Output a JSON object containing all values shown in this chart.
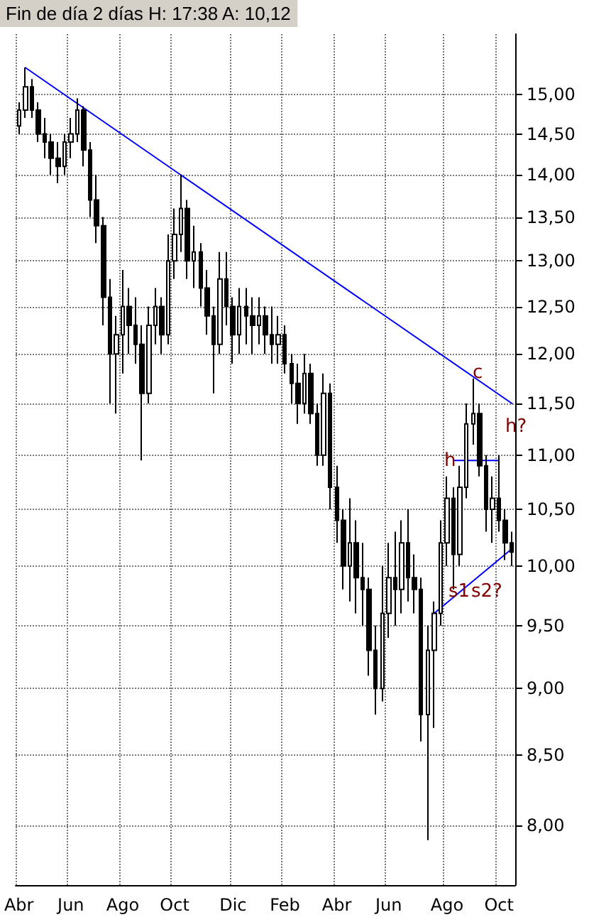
{
  "chart_data": {
    "type": "candlestick",
    "title": "Fin de día 2 días H: 17:38 A: 10,12",
    "categories": [
      "Abr",
      null,
      null,
      null,
      null,
      null,
      null,
      null,
      "Jun",
      null,
      null,
      null,
      null,
      null,
      null,
      null,
      "Ago",
      null,
      null,
      null,
      null,
      null,
      null,
      null,
      "Oct",
      null,
      null,
      null,
      null,
      null,
      null,
      null,
      null,
      "Dic",
      null,
      null,
      null,
      null,
      null,
      null,
      null,
      "Feb",
      null,
      null,
      null,
      null,
      null,
      null,
      null,
      "Abr",
      null,
      null,
      null,
      null,
      null,
      null,
      null,
      "Jun",
      null,
      null,
      null,
      null,
      null,
      null,
      null,
      null,
      "Ago",
      null,
      null,
      null,
      null,
      null,
      null,
      null,
      "Oct",
      null,
      null
    ],
    "color": "#000000",
    "ohlc": [
      [
        14.6,
        14.9,
        14.5,
        14.8
      ],
      [
        14.8,
        15.35,
        14.7,
        15.1
      ],
      [
        15.1,
        15.2,
        14.7,
        14.8
      ],
      [
        14.8,
        14.9,
        14.4,
        14.5
      ],
      [
        14.5,
        14.7,
        14.2,
        14.4
      ],
      [
        14.4,
        14.5,
        14.0,
        14.2
      ],
      [
        14.2,
        14.4,
        13.9,
        14.1
      ],
      [
        14.1,
        14.5,
        14.0,
        14.4
      ],
      [
        14.4,
        14.7,
        14.2,
        14.5
      ],
      [
        14.5,
        14.95,
        14.4,
        14.8
      ],
      [
        14.8,
        14.85,
        14.1,
        14.3
      ],
      [
        14.3,
        14.4,
        13.5,
        13.7
      ],
      [
        13.7,
        14.0,
        13.2,
        13.4
      ],
      [
        13.4,
        13.5,
        12.3,
        12.6
      ],
      [
        12.6,
        12.8,
        11.5,
        12.0
      ],
      [
        12.0,
        12.4,
        11.4,
        12.2
      ],
      [
        12.2,
        12.9,
        11.8,
        12.5
      ],
      [
        12.5,
        12.7,
        12.0,
        12.3
      ],
      [
        12.3,
        12.6,
        11.9,
        12.1
      ],
      [
        12.1,
        12.3,
        10.95,
        11.6
      ],
      [
        11.6,
        12.5,
        11.5,
        12.3
      ],
      [
        12.3,
        12.7,
        12.1,
        12.5
      ],
      [
        12.5,
        12.6,
        12.0,
        12.2
      ],
      [
        12.2,
        13.3,
        12.1,
        13.0
      ],
      [
        13.0,
        13.6,
        12.8,
        13.3
      ],
      [
        13.3,
        14.0,
        13.1,
        13.6
      ],
      [
        13.6,
        13.7,
        12.8,
        13.0
      ],
      [
        13.0,
        13.4,
        12.7,
        13.1
      ],
      [
        13.1,
        13.2,
        12.5,
        12.7
      ],
      [
        12.7,
        12.9,
        12.2,
        12.4
      ],
      [
        12.4,
        12.5,
        11.6,
        12.1
      ],
      [
        12.1,
        13.1,
        12.0,
        12.8
      ],
      [
        12.8,
        13.1,
        12.3,
        12.5
      ],
      [
        12.5,
        12.6,
        11.9,
        12.2
      ],
      [
        12.2,
        12.7,
        12.0,
        12.5
      ],
      [
        12.5,
        12.7,
        12.1,
        12.4
      ],
      [
        12.4,
        12.6,
        12.0,
        12.3
      ],
      [
        12.3,
        12.6,
        12.1,
        12.4
      ],
      [
        12.4,
        12.5,
        12.0,
        12.2
      ],
      [
        12.2,
        12.5,
        11.9,
        12.1
      ],
      [
        12.1,
        12.4,
        11.9,
        12.2
      ],
      [
        12.2,
        12.3,
        11.8,
        11.9
      ],
      [
        11.9,
        12.0,
        11.5,
        11.7
      ],
      [
        11.7,
        11.9,
        11.3,
        11.5
      ],
      [
        11.5,
        12.0,
        11.4,
        11.8
      ],
      [
        11.8,
        11.9,
        11.3,
        11.4
      ],
      [
        11.4,
        11.5,
        10.9,
        11.0
      ],
      [
        11.0,
        11.8,
        10.9,
        11.6
      ],
      [
        11.6,
        11.7,
        10.5,
        10.7
      ],
      [
        10.7,
        10.9,
        10.2,
        10.4
      ],
      [
        10.4,
        10.5,
        9.8,
        10.0
      ],
      [
        10.0,
        10.6,
        9.7,
        10.2
      ],
      [
        10.2,
        10.4,
        9.6,
        9.9
      ],
      [
        9.9,
        10.2,
        9.5,
        9.8
      ],
      [
        9.8,
        9.9,
        9.1,
        9.3
      ],
      [
        9.3,
        9.5,
        8.8,
        9.0
      ],
      [
        9.0,
        10.0,
        8.9,
        9.6
      ],
      [
        9.6,
        10.2,
        9.4,
        9.9
      ],
      [
        9.9,
        10.3,
        9.5,
        9.8
      ],
      [
        9.8,
        10.4,
        9.6,
        10.2
      ],
      [
        10.2,
        10.5,
        9.7,
        9.9
      ],
      [
        9.9,
        10.1,
        9.6,
        9.8
      ],
      [
        9.8,
        9.9,
        8.6,
        8.8
      ],
      [
        8.8,
        9.5,
        7.9,
        9.3
      ],
      [
        9.3,
        9.7,
        8.7,
        9.6
      ],
      [
        9.6,
        10.4,
        9.5,
        10.2
      ],
      [
        10.2,
        10.8,
        10.0,
        10.6
      ],
      [
        10.6,
        10.7,
        9.8,
        10.1
      ],
      [
        10.1,
        10.9,
        10.0,
        10.7
      ],
      [
        10.7,
        11.5,
        10.6,
        11.3
      ],
      [
        11.3,
        11.75,
        11.1,
        11.4
      ],
      [
        11.4,
        11.5,
        10.8,
        10.9
      ],
      [
        10.9,
        11.0,
        10.3,
        10.5
      ],
      [
        10.5,
        10.8,
        10.2,
        10.6
      ],
      [
        10.6,
        11.0,
        10.3,
        10.4
      ],
      [
        10.4,
        10.5,
        10.05,
        10.2
      ],
      [
        10.2,
        10.3,
        10.0,
        10.12
      ]
    ],
    "series": [
      {
        "type": "line",
        "color": "#0000ff",
        "values": [
          null,
          15.35,
          null,
          null,
          null,
          null,
          null,
          null,
          null,
          null,
          null,
          null,
          null,
          null,
          null,
          null,
          null,
          null,
          null,
          null,
          null,
          null,
          null,
          null,
          null,
          null,
          null,
          null,
          null,
          null,
          null,
          null,
          null,
          null,
          null,
          null,
          null,
          null,
          null,
          null,
          null,
          null,
          null,
          null,
          null,
          null,
          null,
          null,
          null,
          null,
          null,
          null,
          null,
          null,
          null,
          null,
          null,
          null,
          null,
          null,
          null,
          null,
          null,
          null,
          null,
          null,
          null,
          null,
          null,
          null,
          null,
          null,
          null,
          null,
          null,
          null,
          11.5
        ]
      },
      {
        "type": "line",
        "color": "#0000ff",
        "values": [
          null,
          null,
          null,
          null,
          null,
          null,
          null,
          null,
          null,
          null,
          null,
          null,
          null,
          null,
          null,
          null,
          null,
          null,
          null,
          null,
          null,
          null,
          null,
          null,
          null,
          null,
          null,
          null,
          null,
          null,
          null,
          null,
          null,
          null,
          null,
          null,
          null,
          null,
          null,
          null,
          null,
          null,
          null,
          null,
          null,
          null,
          null,
          null,
          null,
          null,
          null,
          null,
          null,
          null,
          null,
          null,
          null,
          null,
          null,
          null,
          null,
          null,
          null,
          null,
          null,
          null,
          null,
          10.95,
          null,
          null,
          null,
          null,
          null,
          null,
          10.95,
          null,
          null
        ]
      },
      {
        "type": "line",
        "color": "#0000ff",
        "values": [
          null,
          null,
          null,
          null,
          null,
          null,
          null,
          null,
          null,
          null,
          null,
          null,
          null,
          null,
          null,
          null,
          null,
          null,
          null,
          null,
          null,
          null,
          null,
          null,
          null,
          null,
          null,
          null,
          null,
          null,
          null,
          null,
          null,
          null,
          null,
          null,
          null,
          null,
          null,
          null,
          null,
          null,
          null,
          null,
          null,
          null,
          null,
          null,
          null,
          null,
          null,
          null,
          null,
          null,
          null,
          null,
          null,
          null,
          null,
          null,
          null,
          null,
          null,
          null,
          9.6,
          null,
          null,
          null,
          null,
          null,
          null,
          null,
          null,
          null,
          null,
          null,
          10.15
        ]
      }
    ],
    "marker": "none",
    "annotations": [
      "c",
      "h",
      "h?",
      "s1",
      "s2?"
    ],
    "log": "y",
    "ylim": [
      7.6,
      15.8
    ],
    "yticks": [
      {
        "value": 8,
        "label": "8,00"
      },
      {
        "value": 8.5,
        "label": "8,50"
      },
      {
        "value": 9,
        "label": "9,00"
      },
      {
        "value": 9.5,
        "label": "9,50"
      },
      {
        "value": 10,
        "label": "10,00"
      },
      {
        "value": 10.5,
        "label": "10,50"
      },
      {
        "value": 11,
        "label": "11,00"
      },
      {
        "value": 11.5,
        "label": "11,50"
      },
      {
        "value": 12,
        "label": "12,00"
      },
      {
        "value": 12.5,
        "label": "12,50"
      },
      {
        "value": 13,
        "label": "13,00"
      },
      {
        "value": 13.5,
        "label": "13,50"
      },
      {
        "value": 14,
        "label": "14,00"
      },
      {
        "value": 14.5,
        "label": "14,50"
      },
      {
        "value": 15,
        "label": "15,00"
      }
    ],
    "grid": true
  }
}
